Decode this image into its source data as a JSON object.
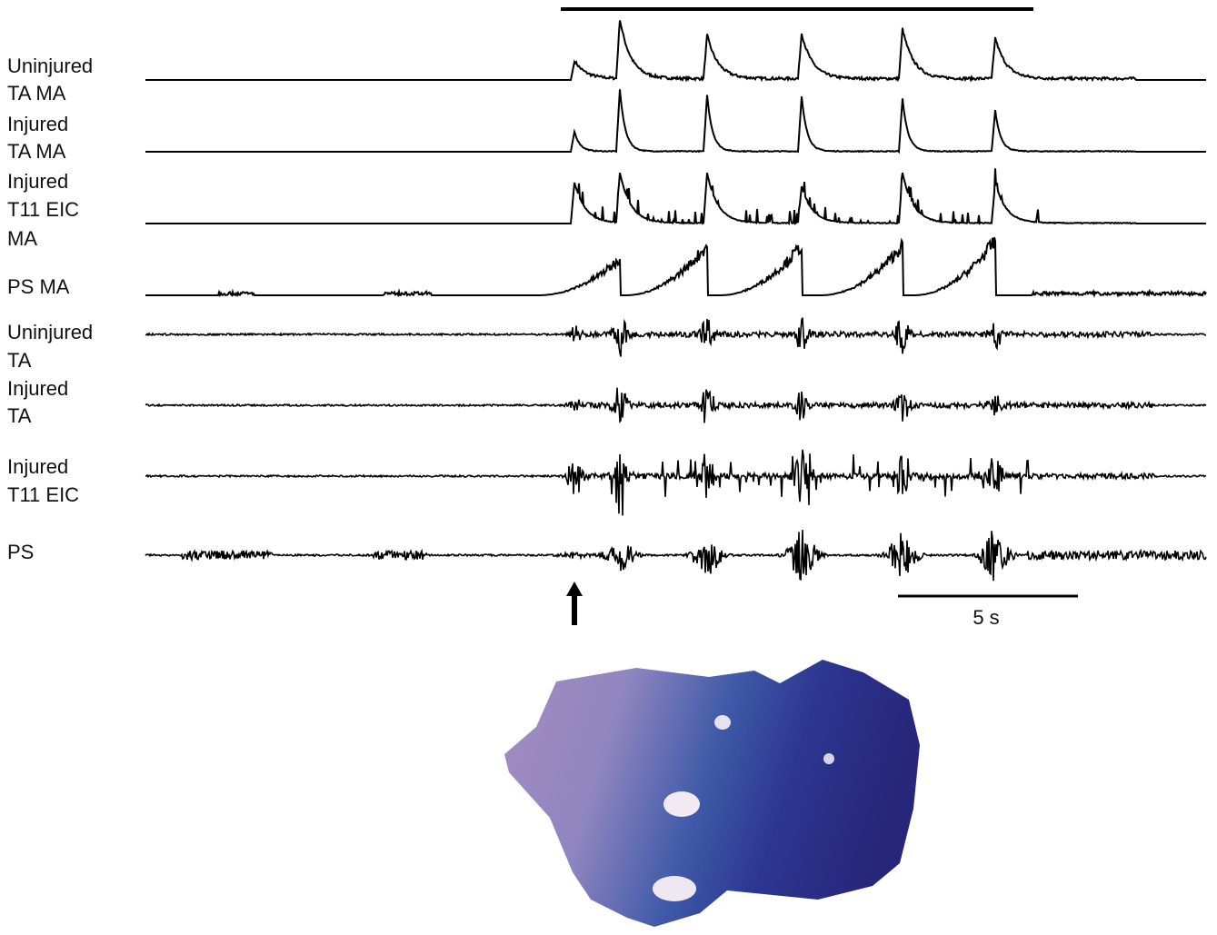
{
  "traces": [
    {
      "label": [
        "Uninjured",
        "TA MA"
      ]
    },
    {
      "label": [
        "Injured",
        "TA MA"
      ]
    },
    {
      "label": [
        "Injured",
        "T11 EIC",
        "MA"
      ]
    },
    {
      "label": [
        "PS MA"
      ]
    },
    {
      "label": [
        "Uninjured",
        "TA"
      ]
    },
    {
      "label": [
        "Injured",
        "TA"
      ]
    },
    {
      "label": [
        "Injured",
        "T11 EIC"
      ]
    },
    {
      "label": [
        "PS"
      ]
    }
  ],
  "scale_bar": {
    "label": "5 s"
  }
}
